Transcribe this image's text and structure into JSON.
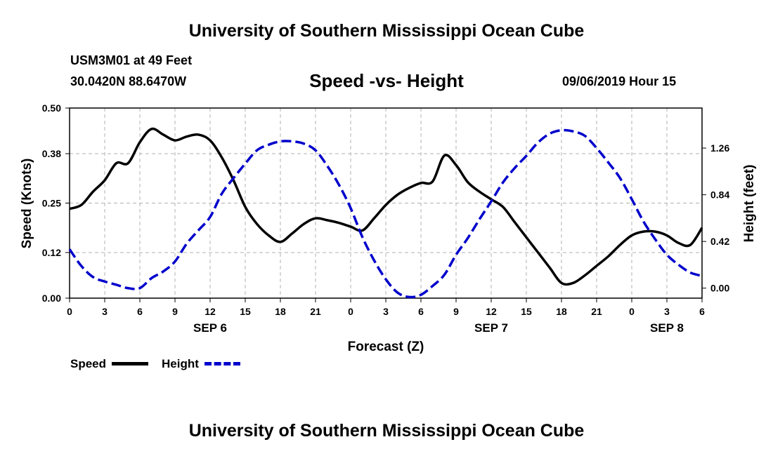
{
  "header": {
    "title": "University of Southern Mississippi Ocean Cube",
    "station": "USM3M01 at 49 Feet",
    "coords": "30.0420N 88.6470W",
    "subtitle": "Speed -vs- Height",
    "datestamp": "09/06/2019 Hour 15"
  },
  "footer": {
    "title": "University of Southern Mississippi Ocean Cube"
  },
  "legend": {
    "speed_label": "Speed",
    "height_label": "Height"
  },
  "colors": {
    "speed": "#000000",
    "height": "#0000cc",
    "grid": "#b0b0b0"
  },
  "chart_data": {
    "type": "line",
    "title": "Speed -vs- Height",
    "xlabel": "Forecast (Z)",
    "ylabel": "Speed (Knots)",
    "y2label": "Height (feet)",
    "xlim": [
      0,
      54
    ],
    "ylim": [
      0.0,
      0.5
    ],
    "y2lim": [
      -0.09,
      1.62
    ],
    "grid": true,
    "legend_position": "bottom-left",
    "x_ticks": [
      0,
      3,
      6,
      9,
      12,
      15,
      18,
      21,
      24,
      27,
      30,
      33,
      36,
      39,
      42,
      45,
      48,
      51,
      54
    ],
    "x_tick_labels": [
      "0",
      "3",
      "6",
      "9",
      "12",
      "15",
      "18",
      "21",
      "0",
      "3",
      "6",
      "9",
      "12",
      "15",
      "18",
      "21",
      "0",
      "3",
      "6"
    ],
    "date_labels": [
      {
        "x": 12,
        "label": "SEP 6"
      },
      {
        "x": 36,
        "label": "SEP 7"
      },
      {
        "x": 51,
        "label": "SEP 8"
      }
    ],
    "y_ticks": [
      0.0,
      0.12,
      0.25,
      0.38,
      0.5
    ],
    "y_tick_labels": [
      "0.00",
      "0.12",
      "0.25",
      "0.38",
      "0.50"
    ],
    "y2_ticks": [
      0.0,
      0.42,
      0.84,
      1.26
    ],
    "y2_tick_labels": [
      "0.00",
      "0.42",
      "0.84",
      "1.26"
    ],
    "series": [
      {
        "name": "Speed",
        "axis": "left",
        "style": "solid",
        "x": [
          0,
          1,
          2,
          3,
          4,
          5,
          6,
          7,
          8,
          9,
          10,
          11,
          12,
          13,
          14,
          15,
          16,
          17,
          18,
          19,
          20,
          21,
          22,
          23,
          24,
          25,
          26,
          27,
          28,
          29,
          30,
          31,
          32,
          33,
          34,
          35,
          36,
          37,
          38,
          39,
          40,
          41,
          42,
          43,
          44,
          45,
          46,
          47,
          48,
          49,
          50,
          51,
          52,
          53,
          54
        ],
        "y": [
          0.235,
          0.245,
          0.28,
          0.31,
          0.355,
          0.355,
          0.41,
          0.445,
          0.43,
          0.415,
          0.425,
          0.43,
          0.415,
          0.37,
          0.31,
          0.24,
          0.195,
          0.165,
          0.148,
          0.17,
          0.195,
          0.21,
          0.205,
          0.198,
          0.188,
          0.178,
          0.21,
          0.245,
          0.272,
          0.29,
          0.303,
          0.307,
          0.375,
          0.35,
          0.305,
          0.28,
          0.26,
          0.24,
          0.2,
          0.16,
          0.12,
          0.08,
          0.04,
          0.04,
          0.06,
          0.085,
          0.11,
          0.14,
          0.165,
          0.175,
          0.175,
          0.165,
          0.145,
          0.14,
          0.185
        ]
      },
      {
        "name": "Height",
        "axis": "right",
        "style": "dashed",
        "x": [
          0,
          1,
          2,
          3,
          4,
          5,
          6,
          7,
          8,
          9,
          10,
          11,
          12,
          13,
          14,
          15,
          16,
          17,
          18,
          19,
          20,
          21,
          22,
          23,
          24,
          25,
          26,
          27,
          28,
          29,
          30,
          31,
          32,
          33,
          34,
          35,
          36,
          37,
          38,
          39,
          40,
          41,
          42,
          43,
          44,
          45,
          46,
          47,
          48,
          49,
          50,
          51,
          52,
          53,
          54
        ],
        "y": [
          0.35,
          0.2,
          0.1,
          0.06,
          0.03,
          0.0,
          0.0,
          0.09,
          0.15,
          0.24,
          0.4,
          0.52,
          0.64,
          0.85,
          0.99,
          1.12,
          1.24,
          1.29,
          1.32,
          1.32,
          1.3,
          1.24,
          1.1,
          0.93,
          0.72,
          0.46,
          0.25,
          0.08,
          -0.04,
          -0.08,
          -0.06,
          0.02,
          0.12,
          0.3,
          0.45,
          0.62,
          0.78,
          0.95,
          1.08,
          1.19,
          1.31,
          1.39,
          1.42,
          1.41,
          1.37,
          1.26,
          1.13,
          0.99,
          0.8,
          0.6,
          0.44,
          0.3,
          0.21,
          0.14,
          0.11
        ]
      }
    ]
  }
}
